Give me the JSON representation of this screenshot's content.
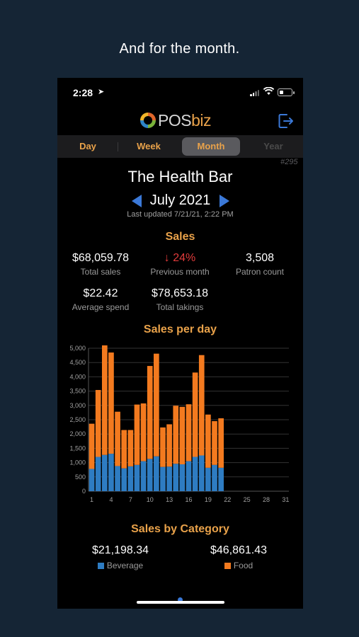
{
  "caption": "And for the month.",
  "status_bar": {
    "time": "2:28"
  },
  "app": {
    "logo_main": "POS",
    "logo_accent": "biz",
    "tabs": [
      {
        "label": "Day"
      },
      {
        "label": "Week"
      },
      {
        "label": "Month",
        "active": true
      },
      {
        "label": "Year"
      }
    ],
    "id_tag": "#295"
  },
  "business": {
    "name": "The Health Bar",
    "month": "July 2021",
    "last_updated": "Last updated 7/21/21, 2:22 PM"
  },
  "sales": {
    "title": "Sales",
    "total_sales": {
      "value": "$68,059.78",
      "label": "Total sales"
    },
    "previous_month": {
      "value": "24%",
      "label": "Previous month",
      "direction": "down"
    },
    "patron_count": {
      "value": "3,508",
      "label": "Patron count"
    },
    "average_spend": {
      "value": "$22.42",
      "label": "Average spend"
    },
    "total_takings": {
      "value": "$78,653.18",
      "label": "Total takings"
    }
  },
  "sales_per_day_title": "Sales per day",
  "chart_data": {
    "type": "bar",
    "stacked": true,
    "title": "Sales per day",
    "x": [
      1,
      2,
      3,
      4,
      5,
      6,
      7,
      8,
      9,
      10,
      11,
      12,
      13,
      14,
      15,
      16,
      17,
      18,
      19,
      20,
      21
    ],
    "x_ticks": [
      1,
      4,
      7,
      10,
      13,
      16,
      19,
      22,
      25,
      28,
      31
    ],
    "xlim": [
      1,
      31
    ],
    "ylim": [
      0,
      5000
    ],
    "y_ticks": [
      0,
      500,
      1000,
      1500,
      2000,
      2500,
      3000,
      3500,
      4000,
      4500,
      5000
    ],
    "y_tick_labels": [
      "0",
      "500",
      "1,000",
      "1,500",
      "2,000",
      "2,500",
      "3,000",
      "3,500",
      "4,000",
      "4,500",
      "5,000"
    ],
    "grid": true,
    "series": [
      {
        "name": "Beverage",
        "color": "#2e7cc2",
        "values": [
          780,
          1200,
          1270,
          1310,
          880,
          800,
          870,
          920,
          1050,
          1130,
          1220,
          850,
          860,
          960,
          940,
          1050,
          1200,
          1250,
          820,
          920,
          820
        ]
      },
      {
        "name": "Food",
        "color": "#f37a1f",
        "values": [
          1580,
          2340,
          3830,
          3540,
          1900,
          1340,
          1270,
          2110,
          2020,
          3250,
          3590,
          1380,
          1480,
          2030,
          2010,
          1990,
          2950,
          3510,
          1860,
          1530,
          1730
        ]
      }
    ]
  },
  "category": {
    "title": "Sales by Category",
    "items": [
      {
        "value": "$21,198.34",
        "label": "Beverage",
        "color": "#2e7cc2"
      },
      {
        "value": "$46,861.43",
        "label": "Food",
        "color": "#f37a1f"
      }
    ]
  }
}
